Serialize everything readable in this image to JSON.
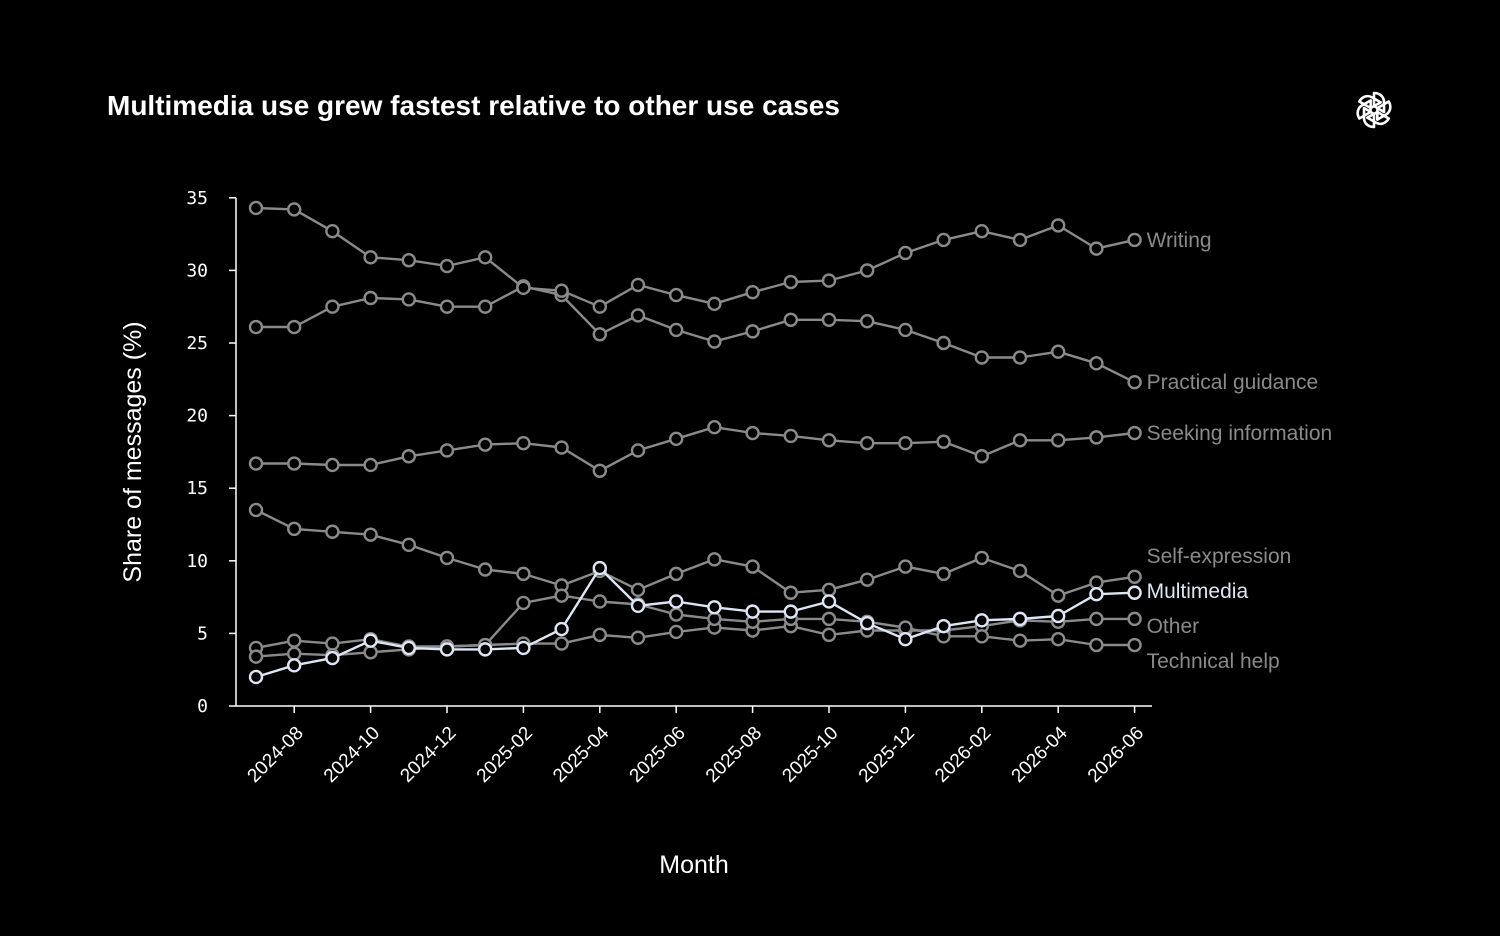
{
  "title": "Multimedia use grew fastest relative to other use cases",
  "logo_icon": "openai-logo-icon",
  "colors": {
    "background": "#000000",
    "muted_series": "#8a8a8a",
    "highlight_series": "#dde6f5",
    "axis": "#ffffff"
  },
  "chart_data": {
    "type": "line",
    "title": "Multimedia use grew fastest relative to other use cases",
    "xlabel": "Month",
    "ylabel": "Share of messages (%)",
    "ylim": [
      0,
      35
    ],
    "yticks": [
      0,
      5,
      10,
      15,
      20,
      25,
      30,
      35
    ],
    "x": [
      "2024-07",
      "2024-08",
      "2024-09",
      "2024-10",
      "2024-11",
      "2024-12",
      "2025-01",
      "2025-02",
      "2025-03",
      "2025-04",
      "2025-05",
      "2025-06",
      "2025-07",
      "2025-08",
      "2025-09",
      "2025-10",
      "2025-11",
      "2025-12",
      "2026-01",
      "2026-02",
      "2026-03",
      "2026-04",
      "2026-05",
      "2026-06"
    ],
    "xticks": [
      "2024-08",
      "2024-10",
      "2024-12",
      "2025-02",
      "2025-04",
      "2025-06",
      "2025-08",
      "2025-10",
      "2025-12",
      "2026-02",
      "2026-04",
      "2026-06"
    ],
    "grid": false,
    "legend": "labels at line ends",
    "series": [
      {
        "name": "Practical guidance",
        "highlight": false,
        "values": [
          26.1,
          26.1,
          27.5,
          28.1,
          28.0,
          27.5,
          27.5,
          28.9,
          28.3,
          25.6,
          26.9,
          25.9,
          25.1,
          25.8,
          26.6,
          26.6,
          26.5,
          25.9,
          25.0,
          24.0,
          24.0,
          24.4,
          23.6,
          22.3
        ]
      },
      {
        "name": "Writing",
        "highlight": false,
        "values": [
          34.3,
          34.2,
          32.7,
          30.9,
          30.7,
          30.3,
          30.9,
          28.8,
          28.6,
          27.5,
          29.0,
          28.3,
          27.7,
          28.5,
          29.2,
          29.3,
          30.0,
          31.2,
          32.1,
          32.7,
          32.1,
          33.1,
          31.5,
          32.1
        ]
      },
      {
        "name": "Seeking information",
        "highlight": false,
        "values": [
          16.7,
          16.7,
          16.6,
          16.6,
          17.2,
          17.6,
          18.0,
          18.1,
          17.8,
          16.2,
          17.6,
          18.4,
          19.2,
          18.8,
          18.6,
          18.3,
          18.1,
          18.1,
          18.2,
          17.2,
          18.3,
          18.3,
          18.5,
          18.8
        ]
      },
      {
        "name": "Self-expression",
        "highlight": false,
        "values": [
          13.5,
          12.2,
          12.0,
          11.8,
          11.1,
          10.2,
          9.4,
          9.1,
          8.3,
          9.3,
          8.0,
          9.1,
          10.1,
          9.6,
          7.8,
          8.0,
          8.7,
          9.6,
          9.1,
          10.2,
          9.3,
          7.6,
          8.5,
          8.9
        ]
      },
      {
        "name": "Multimedia",
        "highlight": true,
        "values": [
          2.0,
          2.8,
          3.3,
          4.5,
          4.0,
          3.9,
          3.9,
          4.0,
          5.3,
          9.5,
          6.9,
          7.2,
          6.8,
          6.5,
          6.5,
          7.2,
          5.7,
          4.6,
          5.5,
          5.9,
          6.0,
          6.2,
          7.7,
          7.8
        ]
      },
      {
        "name": "Other",
        "highlight": false,
        "values": [
          4.0,
          4.5,
          4.3,
          4.6,
          4.1,
          4.1,
          4.2,
          4.3,
          4.3,
          4.9,
          4.7,
          5.1,
          5.4,
          5.2,
          5.5,
          4.9,
          5.2,
          5.2,
          5.2,
          5.5,
          5.9,
          5.8,
          6.0,
          6.0
        ]
      },
      {
        "name": "Technical help",
        "highlight": false,
        "values": [
          3.4,
          3.6,
          3.5,
          3.7,
          3.9,
          4.1,
          4.2,
          7.1,
          7.6,
          7.2,
          7.0,
          6.3,
          6.0,
          5.8,
          6.0,
          6.0,
          5.8,
          5.4,
          4.8,
          4.8,
          4.5,
          4.6,
          4.2,
          4.2
        ]
      }
    ]
  }
}
